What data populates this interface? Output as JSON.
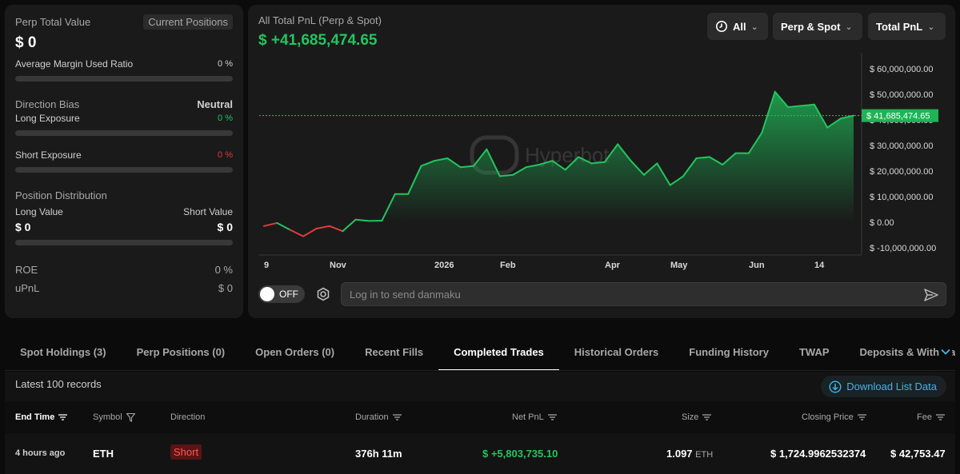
{
  "left": {
    "perp_total_label": "Perp Total Value",
    "current_positions_label": "Current Positions",
    "perp_total_value": "$ 0",
    "margin_label": "Average Margin Used Ratio",
    "margin_value": "0 %",
    "margin_ratio": 0,
    "direction_label": "Direction Bias",
    "direction_value": "Neutral",
    "long_exposure_label": "Long Exposure",
    "long_exposure_value": "0 %",
    "long_exposure_ratio": 0,
    "short_exposure_label": "Short Exposure",
    "short_exposure_value": "0 %",
    "short_exposure_ratio": 0,
    "distribution_label": "Position Distribution",
    "long_value_label": "Long Value",
    "short_value_label": "Short Value",
    "long_value": "$ 0",
    "short_value": "$ 0",
    "distribution_ratio": 0,
    "roe_label": "ROE",
    "roe_value": "0 %",
    "upnl_label": "uPnL",
    "upnl_value": "$ 0"
  },
  "chart_header": {
    "label": "All Total PnL (Perp & Spot)",
    "value": "$ +41,685,474.65",
    "range_dropdown": "All",
    "scope_dropdown": "Perp & Spot",
    "metric_dropdown": "Total PnL",
    "current_label": "$ 41,685,474.65",
    "watermark": "Hyperbot"
  },
  "chart_data": {
    "type": "area",
    "y_ticks": [
      "$ 60,000,000.00",
      "$ 50,000,000.00",
      "$ 40,000,000.00",
      "$ 30,000,000.00",
      "$ 20,000,000.00",
      "$ 10,000,000.00",
      "$ 0.00",
      "$ -10,000,000.00"
    ],
    "x_ticks": [
      "9",
      "Nov",
      "2026",
      "Feb",
      "Apr",
      "May",
      "Jun",
      "14"
    ],
    "ylim": [
      -10000000,
      60000000
    ],
    "current_value": 41685474.65,
    "values": [
      -1500000,
      -300000,
      -3000000,
      -5500000,
      -2500000,
      -1500000,
      -3500000,
      1000000,
      500000,
      600000,
      11000000,
      11000000,
      22000000,
      24000000,
      25000000,
      21500000,
      22000000,
      28500000,
      18000000,
      18500000,
      21500000,
      22500000,
      24000000,
      20500000,
      25500000,
      23000000,
      23500000,
      30500000,
      24000000,
      18500000,
      23000000,
      14500000,
      18000000,
      25000000,
      25500000,
      22500000,
      27000000,
      27000000,
      35000000,
      51000000,
      45000000,
      45500000,
      46000000,
      37000000,
      40500000,
      41685474.65
    ],
    "grid": false,
    "legend": "none",
    "colors": {
      "positive": "#23c55e",
      "negative": "#e23b3b",
      "fill": "#1f9f4e"
    }
  },
  "danmaku": {
    "toggle_label": "OFF",
    "placeholder": "Log in to send danmaku"
  },
  "tabs": [
    {
      "label": "Spot Holdings (3)"
    },
    {
      "label": "Perp Positions (0)"
    },
    {
      "label": "Open Orders (0)"
    },
    {
      "label": "Recent Fills"
    },
    {
      "label": "Completed Trades"
    },
    {
      "label": "Historical Orders"
    },
    {
      "label": "Funding History"
    },
    {
      "label": "TWAP"
    },
    {
      "label": "Deposits & Withdrawals"
    }
  ],
  "table": {
    "records_label": "Latest 100 records",
    "download_label": "Download List Data",
    "headers": {
      "end_time": "End Time",
      "symbol": "Symbol",
      "direction": "Direction",
      "duration": "Duration",
      "net_pnl": "Net PnL",
      "size": "Size",
      "closing_price": "Closing Price",
      "fee": "Fee"
    },
    "rows": [
      {
        "end_time": "4 hours ago",
        "symbol": "ETH",
        "direction": "Short",
        "duration": "376h 11m",
        "net_pnl": "$ +5,803,735.10",
        "size": "1.097",
        "size_unit": "ETH",
        "closing_price": "$ 1,724.9962532374",
        "fee": "$ 42,753.47"
      }
    ]
  }
}
